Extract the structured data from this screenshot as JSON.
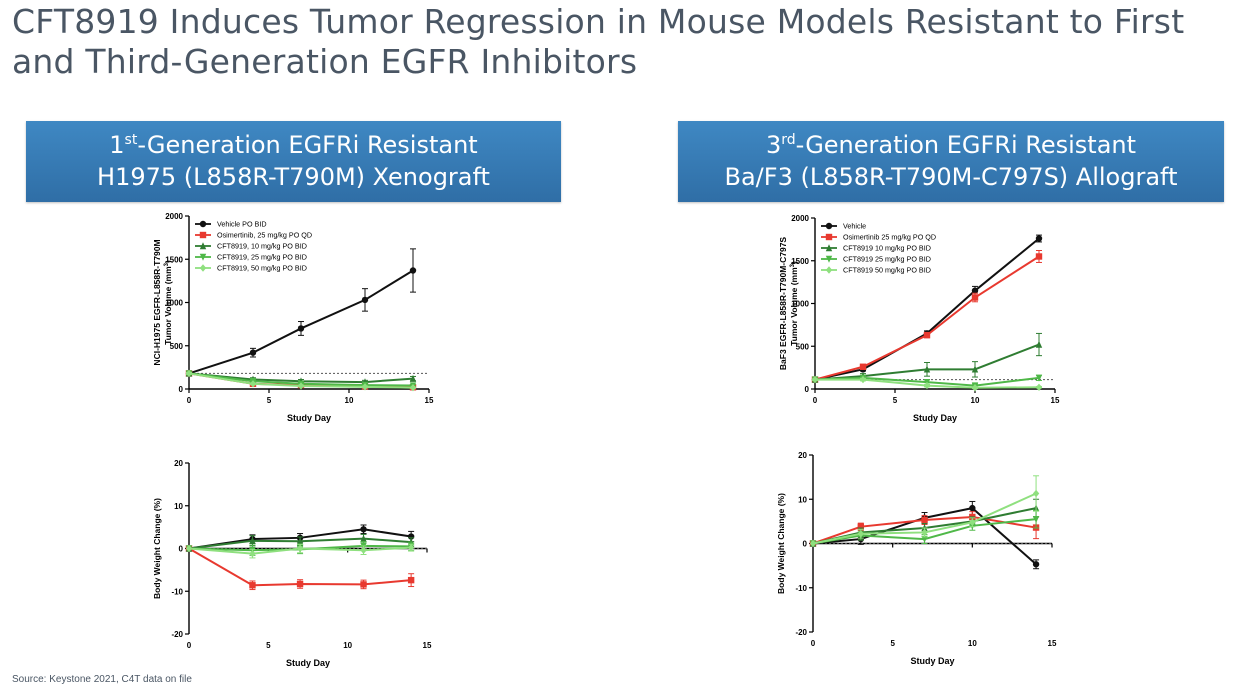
{
  "slide": {
    "title": "CFT8919 Induces Tumor Regression in Mouse Models Resistant to First and Third-Generation EGFR Inhibitors",
    "source": "Source: Keystone 2021, C4T data on file"
  },
  "panels": {
    "left": {
      "banner_line1_num": "1",
      "banner_line1_sup": "st",
      "banner_line1_rest": "-Generation EGFRi Resistant",
      "banner_line2": "H1975 (L858R-T790M) Xenograft"
    },
    "right": {
      "banner_line1_num": "3",
      "banner_line1_sup": "rd",
      "banner_line1_rest": "-Generation EGFRi Resistant",
      "banner_line2": "Ba/F3 (L858R-T790M-C797S) Allograft"
    }
  },
  "chart_data": [
    {
      "id": "h1975-tumor",
      "type": "line",
      "xlabel": "Study Day",
      "ylabel_line1": "NCI-H1975 EGFR-L858R-T790M",
      "ylabel_line2": "Tumor Volume (mm",
      "ylabel_sup": "3",
      "ylabel_end": ")",
      "xlim": [
        0,
        15
      ],
      "ylim": [
        0,
        2000
      ],
      "xticks": [
        0,
        5,
        10,
        15
      ],
      "yticks": [
        0,
        500,
        1000,
        1500,
        2000
      ],
      "reference_line": 180,
      "legend_position": "top-left",
      "series": [
        {
          "name": "Vehicle PO BID",
          "color": "#111111",
          "marker": "circle",
          "x": [
            0,
            4,
            7,
            11,
            14
          ],
          "y": [
            180,
            420,
            700,
            1030,
            1370
          ],
          "err": [
            20,
            50,
            80,
            130,
            250
          ]
        },
        {
          "name": "Osimertinib, 25 mg/kg PO QD",
          "color": "#e8392f",
          "marker": "square",
          "x": [
            0,
            4,
            7,
            11,
            14
          ],
          "y": [
            180,
            60,
            45,
            30,
            20
          ],
          "err": [
            10,
            15,
            10,
            10,
            10
          ]
        },
        {
          "name": "CFT8919, 10 mg/kg PO BID",
          "color": "#2f7d32",
          "marker": "triangle",
          "x": [
            0,
            4,
            7,
            11,
            14
          ],
          "y": [
            180,
            110,
            90,
            80,
            120
          ],
          "err": [
            15,
            20,
            20,
            20,
            25
          ]
        },
        {
          "name": "CFT8919, 25 mg/kg PO BID",
          "color": "#4fb848",
          "marker": "triangle-down",
          "x": [
            0,
            4,
            7,
            11,
            14
          ],
          "y": [
            180,
            90,
            60,
            45,
            40
          ],
          "err": [
            15,
            15,
            15,
            10,
            10
          ]
        },
        {
          "name": "CFT8919, 50 mg/kg PO BID",
          "color": "#8fe07f",
          "marker": "diamond",
          "x": [
            0,
            4,
            7,
            11,
            14
          ],
          "y": [
            180,
            60,
            35,
            25,
            15
          ],
          "err": [
            10,
            10,
            10,
            10,
            5
          ]
        }
      ]
    },
    {
      "id": "h1975-weight",
      "type": "line",
      "xlabel": "Study Day",
      "ylabel_line1": "Body Weight Change (%)",
      "xlim": [
        0,
        15
      ],
      "ylim": [
        -20,
        20
      ],
      "xticks": [
        0,
        5,
        10,
        15
      ],
      "yticks": [
        -20,
        -10,
        0,
        10,
        20
      ],
      "reference_line": 0,
      "series": [
        {
          "name": "Vehicle PO BID",
          "color": "#111111",
          "marker": "circle",
          "x": [
            0,
            4,
            7,
            11,
            14
          ],
          "y": [
            0,
            2.2,
            2.5,
            4.5,
            2.8
          ],
          "err": [
            0,
            1,
            1,
            1,
            1.2
          ]
        },
        {
          "name": "Osimertinib, 25 mg/kg PO QD",
          "color": "#e8392f",
          "marker": "square",
          "x": [
            0,
            4,
            7,
            11,
            14
          ],
          "y": [
            0,
            -8.6,
            -8.3,
            -8.4,
            -7.4
          ],
          "err": [
            0,
            1,
            1,
            1,
            1.5
          ]
        },
        {
          "name": "CFT8919, 10 mg/kg PO BID",
          "color": "#2f7d32",
          "marker": "triangle",
          "x": [
            0,
            4,
            7,
            11,
            14
          ],
          "y": [
            0,
            1.8,
            1.7,
            2.3,
            1.5
          ],
          "err": [
            0,
            1.2,
            1,
            1,
            1
          ]
        },
        {
          "name": "CFT8919, 25 mg/kg PO BID",
          "color": "#4fb848",
          "marker": "triangle-down",
          "x": [
            0,
            4,
            7,
            11,
            14
          ],
          "y": [
            0,
            -0.4,
            -0.2,
            0.6,
            0.5
          ],
          "err": [
            0,
            1.2,
            1,
            1,
            1
          ]
        },
        {
          "name": "CFT8919, 50 mg/kg PO BID",
          "color": "#8fe07f",
          "marker": "diamond",
          "x": [
            0,
            4,
            7,
            11,
            14
          ],
          "y": [
            0,
            -1.2,
            0,
            -0.4,
            0.2
          ],
          "err": [
            0,
            1,
            1,
            1,
            0.8
          ]
        }
      ]
    },
    {
      "id": "baf3-tumor",
      "type": "line",
      "xlabel": "Study Day",
      "ylabel_line1": "BaF3 EGFR-L858R-T790M-C797S",
      "ylabel_line2": "Tumor Volume (mm",
      "ylabel_sup": "3",
      "ylabel_end": ")",
      "xlim": [
        0,
        15
      ],
      "ylim": [
        0,
        2000
      ],
      "xticks": [
        0,
        5,
        10,
        15
      ],
      "yticks": [
        0,
        500,
        1000,
        1500,
        2000
      ],
      "reference_line": 110,
      "legend_position": "top-left",
      "series": [
        {
          "name": "Vehicle",
          "color": "#111111",
          "marker": "circle",
          "x": [
            0,
            3,
            7,
            10,
            14
          ],
          "y": [
            110,
            230,
            650,
            1150,
            1760
          ],
          "err": [
            10,
            20,
            30,
            50,
            40
          ]
        },
        {
          "name": "Osimertinib 25 mg/kg PO QD",
          "color": "#e8392f",
          "marker": "square",
          "x": [
            0,
            3,
            7,
            10,
            14
          ],
          "y": [
            110,
            260,
            630,
            1070,
            1550
          ],
          "err": [
            10,
            20,
            30,
            50,
            70
          ]
        },
        {
          "name": "CFT8919 10 mg/kg PO BID",
          "color": "#2f7d32",
          "marker": "triangle",
          "x": [
            0,
            3,
            7,
            10,
            14
          ],
          "y": [
            110,
            150,
            230,
            230,
            520
          ],
          "err": [
            10,
            30,
            80,
            90,
            130
          ]
        },
        {
          "name": "CFT8919 25 mg/kg PO BID",
          "color": "#4fb848",
          "marker": "triangle-down",
          "x": [
            0,
            3,
            7,
            10,
            14
          ],
          "y": [
            110,
            130,
            80,
            40,
            130
          ],
          "err": [
            10,
            20,
            30,
            20,
            30
          ]
        },
        {
          "name": "CFT8919 50 mg/kg PO BID",
          "color": "#8fe07f",
          "marker": "diamond",
          "x": [
            0,
            3,
            7,
            10,
            14
          ],
          "y": [
            110,
            110,
            40,
            15,
            20
          ],
          "err": [
            10,
            15,
            15,
            10,
            10
          ]
        }
      ]
    },
    {
      "id": "baf3-weight",
      "type": "line",
      "xlabel": "Study Day",
      "ylabel_line1": "Body Weight Change (%)",
      "xlim": [
        0,
        15
      ],
      "ylim": [
        -20,
        20
      ],
      "xticks": [
        0,
        5,
        10,
        15
      ],
      "yticks": [
        -20,
        -10,
        0,
        10,
        20
      ],
      "reference_line": 0,
      "series": [
        {
          "name": "Vehicle",
          "color": "#111111",
          "marker": "circle",
          "x": [
            0,
            3,
            7,
            10,
            14
          ],
          "y": [
            0,
            1,
            5.8,
            8,
            -4.7
          ],
          "err": [
            0,
            1.2,
            1.2,
            1.5,
            1
          ]
        },
        {
          "name": "Osimertinib 25 mg/kg PO QD",
          "color": "#e8392f",
          "marker": "square",
          "x": [
            0,
            3,
            7,
            10,
            14
          ],
          "y": [
            0,
            3.8,
            5.3,
            6,
            3.6
          ],
          "err": [
            0,
            0.8,
            1,
            1.2,
            2.5
          ]
        },
        {
          "name": "CFT8919 10 mg/kg PO BID",
          "color": "#2f7d32",
          "marker": "triangle",
          "x": [
            0,
            3,
            7,
            10,
            14
          ],
          "y": [
            0,
            2.5,
            3.5,
            5,
            8
          ],
          "err": [
            0,
            1,
            1,
            1,
            2
          ]
        },
        {
          "name": "CFT8919 25 mg/kg PO BID",
          "color": "#4fb848",
          "marker": "triangle-down",
          "x": [
            0,
            3,
            7,
            10,
            14
          ],
          "y": [
            0,
            1.8,
            1,
            4,
            5.5
          ],
          "err": [
            0,
            1,
            1,
            1,
            2
          ]
        },
        {
          "name": "CFT8919 50 mg/kg PO BID",
          "color": "#8fe07f",
          "marker": "diamond",
          "x": [
            0,
            3,
            7,
            10,
            14
          ],
          "y": [
            0,
            2.2,
            2.5,
            4.8,
            11.3
          ],
          "err": [
            0,
            1,
            1,
            1,
            4
          ]
        }
      ]
    }
  ]
}
